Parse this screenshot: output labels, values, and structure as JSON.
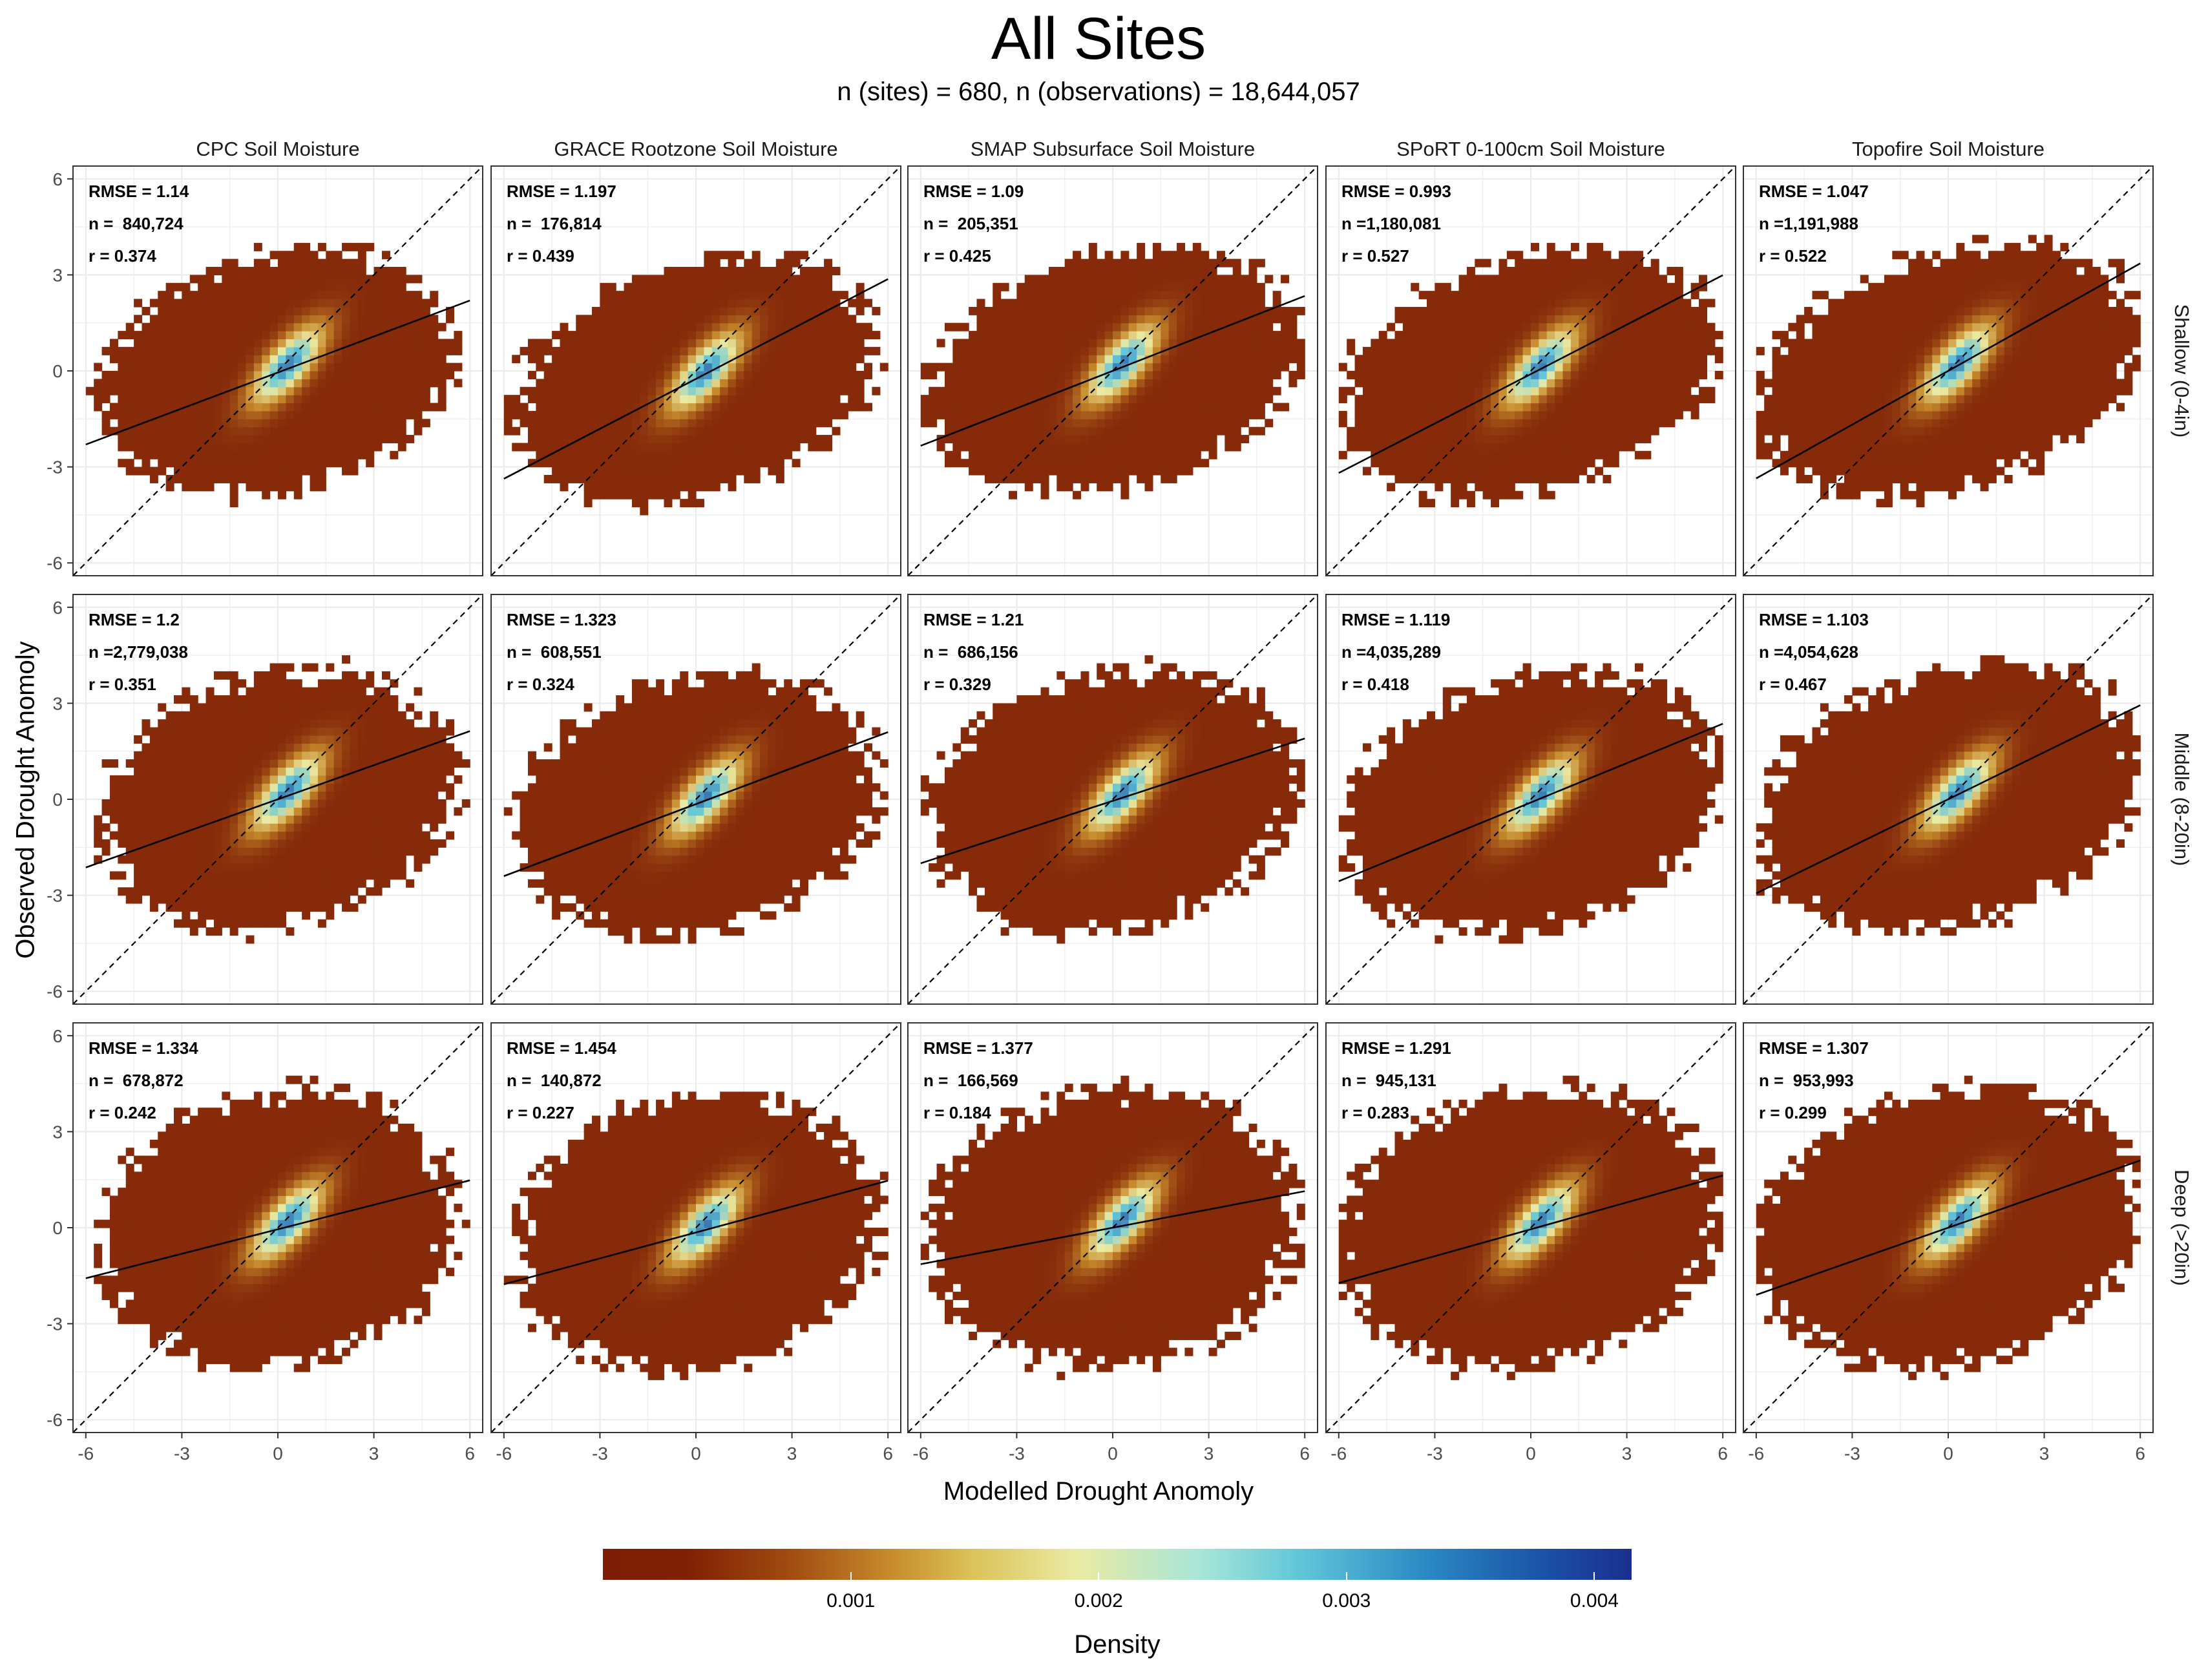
{
  "title": "All Sites",
  "subtitle": "n (sites) = 680, n (observations) = 18,644,057",
  "chart_data": {
    "type": "heatmap",
    "xlabel": "Modelled Drought Anomoly",
    "ylabel": "Observed Drought Anomoly",
    "xlim": [
      -6.4,
      6.4
    ],
    "ylim": [
      -6.4,
      6.4
    ],
    "x_ticks": [
      "-6",
      "-3",
      "0",
      "3",
      "6"
    ],
    "y_ticks": [
      "-6",
      "-3",
      "0",
      "3",
      "6"
    ],
    "grid": true,
    "reference_line": "1:1 dashed",
    "columns": [
      "CPC Soil Moisture",
      "GRACE Rootzone Soil Moisture",
      "SMAP Subsurface Soil Moisture",
      "SPoRT 0-100cm Soil Moisture",
      "Topofire Soil Moisture"
    ],
    "rows": [
      "Shallow (0-4in)",
      "Middle (8-20in)",
      "Deep (>20in)"
    ],
    "legend": {
      "title": "Density",
      "position": "bottom",
      "ticks": [
        "0.001",
        "0.002",
        "0.003",
        "0.004"
      ],
      "tick_values": [
        0.001,
        0.002,
        0.003,
        0.004
      ],
      "range": [
        0,
        0.00415
      ],
      "colors": [
        "#7d1d05",
        "#c78b2c",
        "#eaeaa3",
        "#5fc5d9",
        "#1a2f8e"
      ]
    },
    "panels": [
      {
        "row": 0,
        "col": 0,
        "rmse": "RMSE = 1.14",
        "n": "n =  840,724",
        "r": "r = 0.374",
        "fit": {
          "intercept": -0.05,
          "slope": 0.375
        }
      },
      {
        "row": 0,
        "col": 1,
        "rmse": "RMSE = 1.197",
        "n": "n =  176,814",
        "r": "r = 0.439",
        "fit": {
          "intercept": -0.25,
          "slope": 0.52
        }
      },
      {
        "row": 0,
        "col": 2,
        "rmse": "RMSE = 1.09",
        "n": "n =  205,351",
        "r": "r = 0.425",
        "fit": {
          "intercept": 0.0,
          "slope": 0.39
        }
      },
      {
        "row": 0,
        "col": 3,
        "rmse": "RMSE = 0.993",
        "n": "n =1,180,081",
        "r": "r = 0.527",
        "fit": {
          "intercept": -0.1,
          "slope": 0.515
        }
      },
      {
        "row": 0,
        "col": 4,
        "rmse": "RMSE = 1.047",
        "n": "n =1,191,988",
        "r": "r = 0.522",
        "fit": {
          "intercept": 0.0,
          "slope": 0.56
        }
      },
      {
        "row": 1,
        "col": 0,
        "rmse": "RMSE = 1.2",
        "n": "n =2,779,038",
        "r": "r = 0.351",
        "fit": {
          "intercept": 0.0,
          "slope": 0.355
        }
      },
      {
        "row": 1,
        "col": 1,
        "rmse": "RMSE = 1.323",
        "n": "n =  608,551",
        "r": "r = 0.324",
        "fit": {
          "intercept": -0.15,
          "slope": 0.375
        }
      },
      {
        "row": 1,
        "col": 2,
        "rmse": "RMSE = 1.21",
        "n": "n =  686,156",
        "r": "r = 0.329",
        "fit": {
          "intercept": -0.05,
          "slope": 0.325
        }
      },
      {
        "row": 1,
        "col": 3,
        "rmse": "RMSE = 1.119",
        "n": "n =4,035,289",
        "r": "r = 0.418",
        "fit": {
          "intercept": -0.1,
          "slope": 0.41
        }
      },
      {
        "row": 1,
        "col": 4,
        "rmse": "RMSE = 1.103",
        "n": "n =4,054,628",
        "r": "r = 0.467",
        "fit": {
          "intercept": 0.0,
          "slope": 0.49
        }
      },
      {
        "row": 2,
        "col": 0,
        "rmse": "RMSE = 1.334",
        "n": "n =  678,872",
        "r": "r = 0.242",
        "fit": {
          "intercept": -0.05,
          "slope": 0.255
        }
      },
      {
        "row": 2,
        "col": 1,
        "rmse": "RMSE = 1.454",
        "n": "n =  140,872",
        "r": "r = 0.227",
        "fit": {
          "intercept": -0.15,
          "slope": 0.27
        }
      },
      {
        "row": 2,
        "col": 2,
        "rmse": "RMSE = 1.377",
        "n": "n =  166,569",
        "r": "r = 0.184",
        "fit": {
          "intercept": 0.0,
          "slope": 0.19
        }
      },
      {
        "row": 2,
        "col": 3,
        "rmse": "RMSE = 1.291",
        "n": "n =  945,131",
        "r": "r = 0.283",
        "fit": {
          "intercept": -0.05,
          "slope": 0.28
        }
      },
      {
        "row": 2,
        "col": 4,
        "rmse": "RMSE = 1.307",
        "n": "n =  953,993",
        "r": "r = 0.299",
        "fit": {
          "intercept": 0.0,
          "slope": 0.35
        }
      }
    ]
  }
}
